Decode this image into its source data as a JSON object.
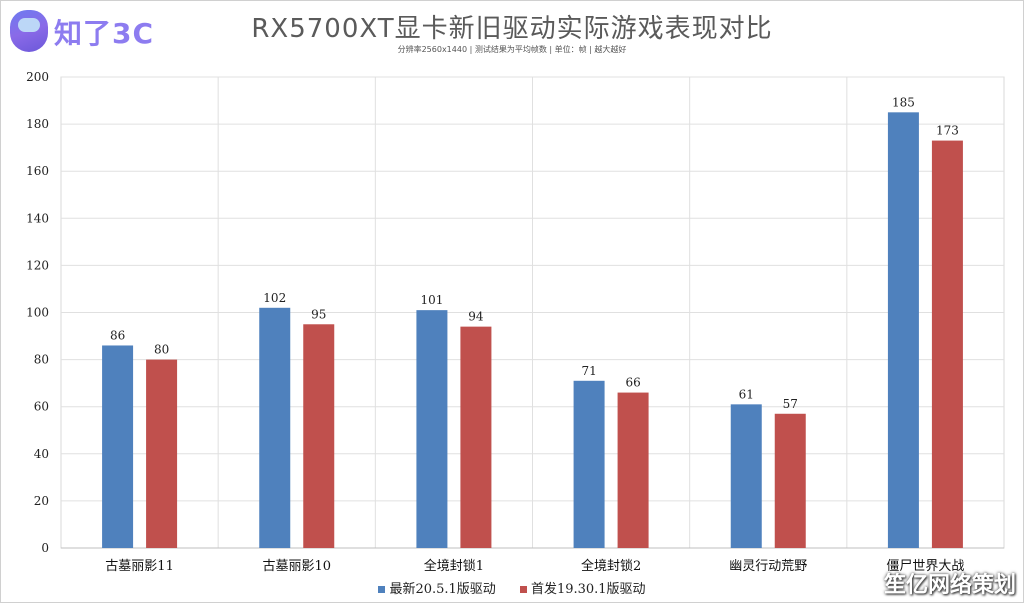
{
  "logo": {
    "text": "知了3C"
  },
  "watermark": {
    "text": "笙亿网络策划"
  },
  "chart_data": {
    "type": "bar",
    "title": "RX5700XT显卡新旧驱动实际游戏表现对比",
    "subtitle": "分辨率2560x1440 | 测试结果为平均帧数 | 单位：帧 | 越大越好",
    "categories": [
      "古墓丽影11",
      "古墓丽影10",
      "全境封锁1",
      "全境封锁2",
      "幽灵行动荒野",
      "僵尸世界大战"
    ],
    "series": [
      {
        "name": "最新20.5.1版驱动",
        "values": [
          86,
          102,
          101,
          71,
          61,
          185
        ],
        "color": "#4f81bd"
      },
      {
        "name": "首发19.30.1版驱动",
        "values": [
          80,
          95,
          94,
          66,
          57,
          173
        ],
        "color": "#c0504d"
      }
    ],
    "ylim": [
      0,
      200
    ],
    "yticks": [
      0,
      20,
      40,
      60,
      80,
      100,
      120,
      140,
      160,
      180,
      200
    ],
    "grid": true,
    "legend": "bottom-center"
  }
}
